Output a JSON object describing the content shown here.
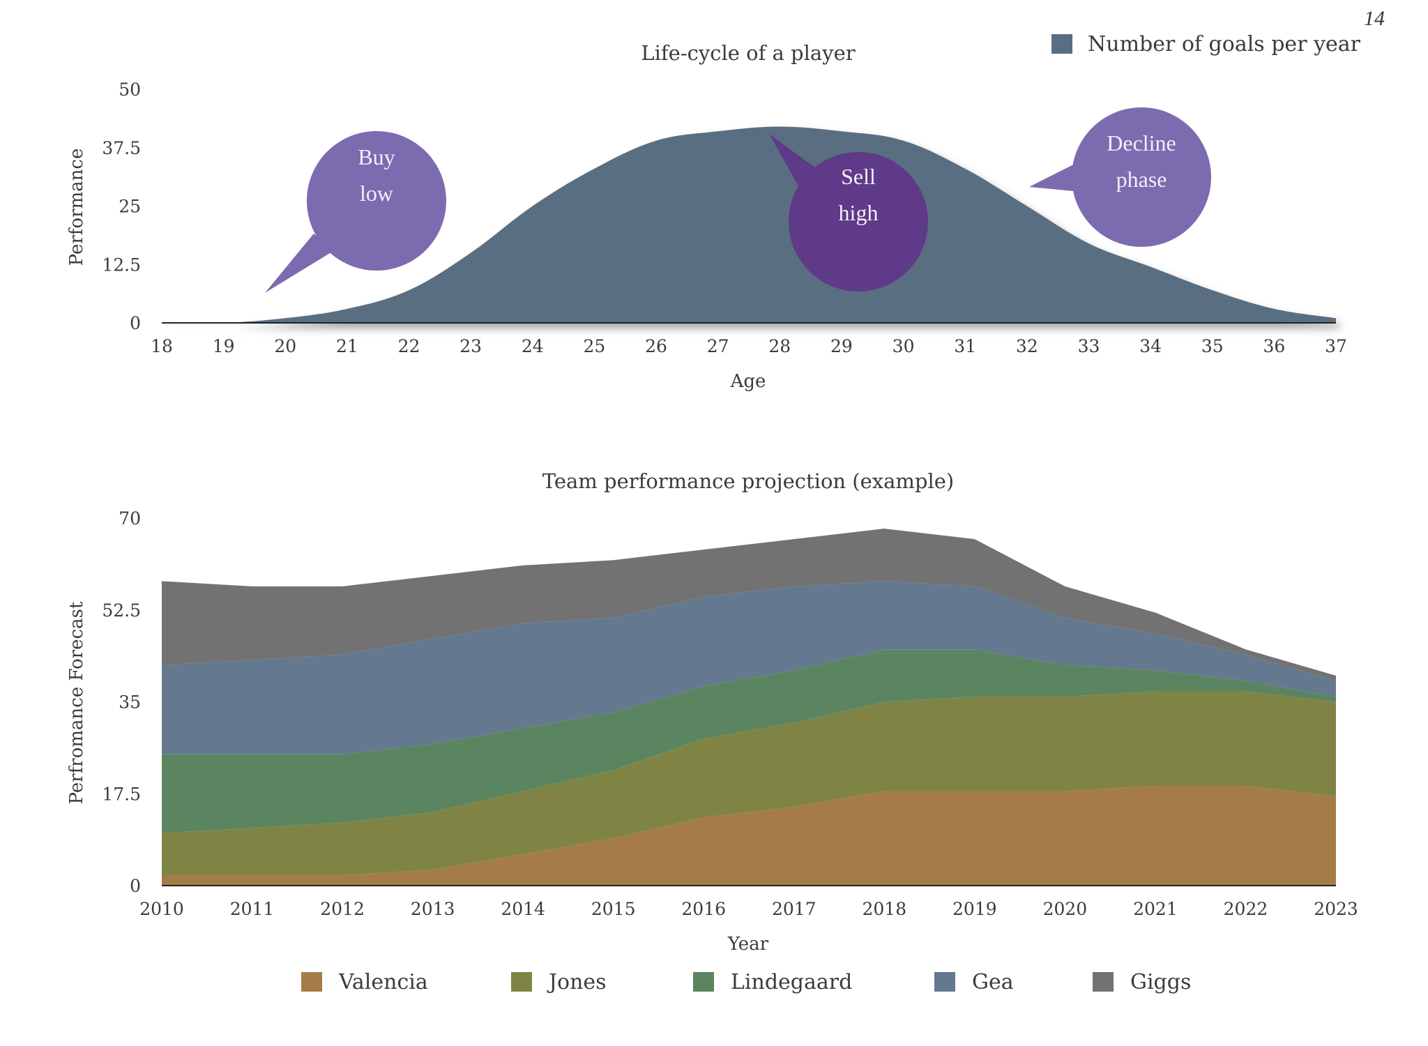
{
  "page_number": "14",
  "colors": {
    "goals": "#5a6e82",
    "bubble_light": "#7d6bb0",
    "bubble_dark": "#5e3a88",
    "valencia": "#a57c48",
    "jones": "#7f8445",
    "lindegaard": "#5a8560",
    "gea": "#64788f",
    "giggs": "#727272"
  },
  "chart_data": [
    {
      "type": "area",
      "title": "Life-cycle of a player",
      "xlabel": "Age",
      "ylabel": "Performance",
      "x": [
        18,
        19,
        20,
        21,
        22,
        23,
        24,
        25,
        26,
        27,
        28,
        29,
        30,
        31,
        32,
        33,
        34,
        35,
        36,
        37
      ],
      "xticks": [
        "18",
        "19",
        "20",
        "21",
        "22",
        "23",
        "24",
        "25",
        "26",
        "27",
        "28",
        "29",
        "30",
        "31",
        "32",
        "33",
        "34",
        "35",
        "36",
        "37"
      ],
      "yticks": [
        "0",
        "12.5",
        "25",
        "37.5",
        "50"
      ],
      "ylim": [
        0,
        50
      ],
      "series": [
        {
          "name": "Number of goals per year",
          "values": [
            0,
            0,
            1,
            3,
            7,
            15,
            25,
            33,
            39,
            41,
            42,
            41,
            39,
            33,
            25,
            17,
            12,
            7,
            3,
            1
          ]
        }
      ],
      "legend": {
        "label": "Number of goals per year",
        "position": "top-right"
      },
      "annotations": [
        {
          "line1": "Buy",
          "line2": "low",
          "points_to_age": 20,
          "style": "light"
        },
        {
          "line1": "Sell",
          "line2": "high",
          "points_to_age": 28,
          "style": "dark"
        },
        {
          "line1": "Decline",
          "line2": "phase",
          "points_to_age": 32,
          "style": "light"
        }
      ]
    },
    {
      "type": "area",
      "stacked": true,
      "title": "Team performance projection (example)",
      "xlabel": "Year",
      "ylabel": "Perfromance Forecast",
      "categories": [
        "2010",
        "2011",
        "2012",
        "2013",
        "2014",
        "2015",
        "2016",
        "2017",
        "2018",
        "2019",
        "2020",
        "2021",
        "2022",
        "2023"
      ],
      "yticks": [
        "0",
        "17.5",
        "35",
        "52.5",
        "70"
      ],
      "ylim": [
        0,
        70
      ],
      "series": [
        {
          "name": "Valencia",
          "values": [
            2,
            2,
            2,
            3,
            6,
            9,
            13,
            15,
            18,
            18,
            18,
            19,
            19,
            17
          ]
        },
        {
          "name": "Jones",
          "values": [
            8,
            9,
            10,
            11,
            12,
            13,
            15,
            16,
            17,
            18,
            18,
            18,
            18,
            18
          ]
        },
        {
          "name": "Lindegaard",
          "values": [
            15,
            14,
            13,
            13,
            12,
            11,
            10,
            10,
            10,
            9,
            6,
            4,
            2,
            1
          ]
        },
        {
          "name": "Gea",
          "values": [
            17,
            18,
            19,
            20,
            20,
            18,
            17,
            16,
            13,
            12,
            9,
            7,
            5,
            3
          ]
        },
        {
          "name": "Giggs",
          "values": [
            16,
            14,
            13,
            12,
            11,
            11,
            9,
            9,
            10,
            9,
            6,
            4,
            1,
            1
          ]
        }
      ],
      "legend": {
        "position": "bottom"
      }
    }
  ]
}
